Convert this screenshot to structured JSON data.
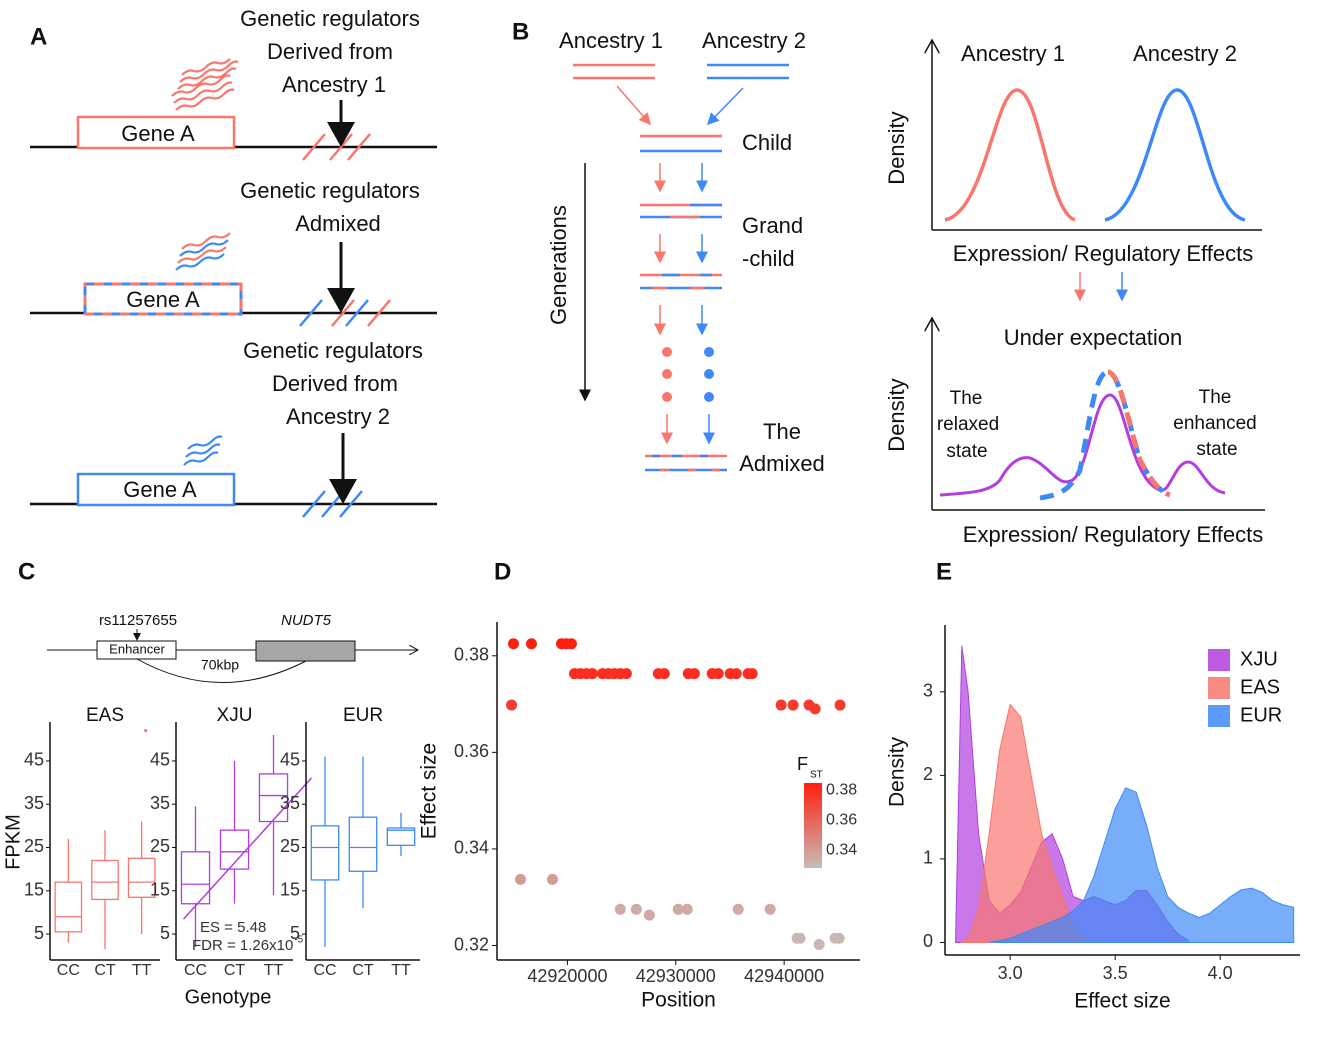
{
  "panel_labels": [
    "A",
    "B",
    "C",
    "D",
    "E"
  ],
  "panel_a": {
    "rows": [
      {
        "label_lines": [
          "Genetic regulators",
          "Derived from",
          "Ancestry 1"
        ],
        "gene": "Gene A"
      },
      {
        "label_lines": [
          "Genetic regulators",
          "Admixed"
        ],
        "gene": "Gene A"
      },
      {
        "label_lines": [
          "Genetic regulators",
          "Derived from",
          "Ancestry 2"
        ],
        "gene": "Gene A"
      }
    ]
  },
  "panel_b": {
    "ancestry_1": "Ancestry 1",
    "ancestry_2": "Ancestry 2",
    "child": "Child",
    "grandchild_lines": [
      "Grand",
      "-child"
    ],
    "generations": "Generations",
    "admixed_lines": [
      "The",
      "Admixed"
    ],
    "density_top": {
      "label_1": "Ancestry 1",
      "label_2": "Ancestry 2",
      "ylabel": "Density",
      "xlabel": "Expression/ Regulatory Effects"
    },
    "density_bottom": {
      "title": "Under expectation",
      "ylabel": "Density",
      "xlabel": "Expression/ Regulatory Effects",
      "relaxed_lines": [
        "The",
        "relaxed",
        "state"
      ],
      "enhanced_lines": [
        "The",
        "enhanced",
        "state"
      ]
    }
  },
  "panel_c_gene": {
    "snp": "rs11257655",
    "enhancer": "Enhancer",
    "gene": "NUDT5",
    "distance": "70kbp"
  },
  "chart_data": [
    {
      "type": "box",
      "categories": [
        "CC",
        "CT",
        "TT"
      ],
      "ylabel": "FPKM",
      "xlabel": "Genotype",
      "ylim": [
        -1,
        54
      ],
      "yticks": [
        5,
        15,
        25,
        35,
        45
      ],
      "facets": [
        {
          "title": "EAS",
          "color": "#f8766d",
          "boxes": [
            {
              "min": 3,
              "q1": 5.5,
              "median": 9,
              "q3": 17,
              "max": 27
            },
            {
              "min": 1.5,
              "q1": 13,
              "median": 17,
              "q3": 22,
              "max": 29
            },
            {
              "min": 5,
              "q1": 13.5,
              "median": 17,
              "q3": 22.5,
              "max": 31
            }
          ],
          "outliers": [
            null,
            null,
            52
          ]
        },
        {
          "title": "XJU",
          "color": "#b23ee0",
          "boxes": [
            {
              "min": 2,
              "q1": 12,
              "median": 16.5,
              "q3": 24,
              "max": 34.5
            },
            {
              "min": 12,
              "q1": 20,
              "median": 24,
              "q3": 29,
              "max": 45
            },
            {
              "min": 14,
              "q1": 31,
              "median": 37,
              "q3": 42,
              "max": 51
            }
          ],
          "outliers": [
            null,
            null,
            null
          ],
          "fit": [
            11.5,
            31.4
          ],
          "annotation": "ES = 5.48",
          "fdr": "FDR = 1.26x10",
          "fdr_exp": "-5"
        },
        {
          "title": "EUR",
          "color": "#3d8af7",
          "boxes": [
            {
              "min": 2,
              "q1": 17.5,
              "median": 25,
              "q3": 30,
              "max": 46
            },
            {
              "min": 11,
              "q1": 19.5,
              "median": 25,
              "q3": 32,
              "max": 46
            },
            {
              "min": 23,
              "q1": 25.5,
              "median": 29,
              "q3": 29.5,
              "max": 33
            }
          ],
          "outliers": [
            null,
            null,
            null
          ]
        }
      ]
    },
    {
      "type": "scatter",
      "xlabel": "Position",
      "ylabel": "Effect size",
      "xlim": [
        42913500,
        42947000
      ],
      "xticks": [
        42920000,
        42930000,
        42940000
      ],
      "ylim": [
        0.317,
        0.387
      ],
      "yticks": [
        0.32,
        0.34,
        0.36,
        0.38
      ],
      "colorbar": {
        "title": "F",
        "subscript": "ST",
        "lim": [
          0.328,
          0.385
        ],
        "ticks": [
          0.34,
          0.36,
          0.38
        ],
        "colors": [
          "#c8bcb8",
          "#ff1f0f"
        ]
      },
      "series": [
        {
          "fst": 0.385,
          "x": [
            42915020,
            42916680,
            42919450,
            42919910,
            42920370
          ],
          "values": [
            0.3825,
            0.3825,
            0.3825,
            0.3825,
            0.3825
          ]
        },
        {
          "fst": 0.38,
          "x": [
            42920650,
            42921200,
            42921750,
            42922300,
            42923230,
            42923780,
            42924330,
            42924880,
            42925440,
            42928390,
            42928940,
            42931150,
            42931710,
            42933360,
            42933920,
            42935020,
            42935580,
            42936680,
            42937050
          ],
          "values": [
            0.3763,
            0.3763,
            0.3763,
            0.3763,
            0.3763,
            0.3763,
            0.3763,
            0.3763,
            0.3763,
            0.3763,
            0.3763,
            0.3763,
            0.3763,
            0.3763,
            0.3763,
            0.3763,
            0.3763,
            0.3763,
            0.3763
          ]
        },
        {
          "fst": 0.375,
          "x": [
            42914840,
            42939720,
            42940830,
            42942300,
            42942860,
            42945160
          ],
          "values": [
            0.3698,
            0.3698,
            0.3698,
            0.3698,
            0.369,
            0.3698
          ]
        },
        {
          "fst": 0.34,
          "x": [
            42915670,
            42918620
          ],
          "values": [
            0.3337,
            0.3337
          ]
        },
        {
          "fst": 0.335,
          "x": [
            42924880,
            42926360,
            42927560,
            42930230,
            42931060,
            42935760,
            42938710
          ],
          "values": [
            0.3275,
            0.3275,
            0.3263,
            0.3275,
            0.3275,
            0.3275,
            0.3275
          ]
        },
        {
          "fst": 0.33,
          "x": [
            42941200,
            42941470,
            42943230,
            42944700,
            42945070
          ],
          "values": [
            0.3215,
            0.3215,
            0.3202,
            0.3215,
            0.3215
          ]
        }
      ]
    },
    {
      "type": "density",
      "xlabel": "Effect size",
      "ylabel": "Density",
      "legend": "top-right",
      "xlim": [
        2.69,
        4.38
      ],
      "xticks": [
        {
          "value": 3,
          "label": "3.0"
        },
        3.5,
        {
          "value": 4,
          "label": "4.0"
        }
      ],
      "ylim": [
        -0.15,
        3.8
      ],
      "yticks": [
        0,
        1,
        2,
        3
      ],
      "x": [
        2.74,
        2.77,
        2.8,
        2.85,
        2.9,
        2.95,
        3.0,
        3.05,
        3.1,
        3.15,
        3.2,
        3.25,
        3.3,
        3.35,
        3.4,
        3.45,
        3.5,
        3.55,
        3.6,
        3.65,
        3.7,
        3.75,
        3.8,
        3.85,
        3.9,
        3.95,
        4.0,
        4.05,
        4.1,
        4.15,
        4.2,
        4.25,
        4.3,
        4.35
      ],
      "series": [
        {
          "name": "XJU",
          "color": "#b23ee0",
          "values": [
            0,
            3.55,
            3.0,
            1.3,
            0.5,
            0.35,
            0.45,
            0.6,
            0.9,
            1.2,
            1.3,
            1.0,
            0.55,
            0.5,
            0.55,
            0.5,
            0.45,
            0.5,
            0.62,
            0.62,
            0.45,
            0.25,
            0.1,
            0.02,
            null,
            null,
            null,
            null,
            null,
            null,
            null,
            null,
            null,
            null
          ]
        },
        {
          "name": "EAS",
          "color": "#f8766d",
          "values": [
            null,
            0,
            0.05,
            0.4,
            1.3,
            2.3,
            2.85,
            2.7,
            2.0,
            1.3,
            0.9,
            0.55,
            0.2,
            0.05,
            0,
            null,
            null,
            null,
            null,
            null,
            null,
            null,
            null,
            null,
            null,
            null,
            null,
            null,
            null,
            null,
            null,
            null,
            null,
            null
          ]
        },
        {
          "name": "EUR",
          "color": "#3d8af7",
          "values": [
            null,
            null,
            null,
            null,
            0,
            0.02,
            0.05,
            0.1,
            0.15,
            0.2,
            0.25,
            0.3,
            0.38,
            0.5,
            0.8,
            1.2,
            1.6,
            1.85,
            1.8,
            1.4,
            0.9,
            0.55,
            0.42,
            0.35,
            0.3,
            0.35,
            0.45,
            0.55,
            0.63,
            0.65,
            0.6,
            0.5,
            0.45,
            0.42
          ]
        }
      ]
    }
  ]
}
